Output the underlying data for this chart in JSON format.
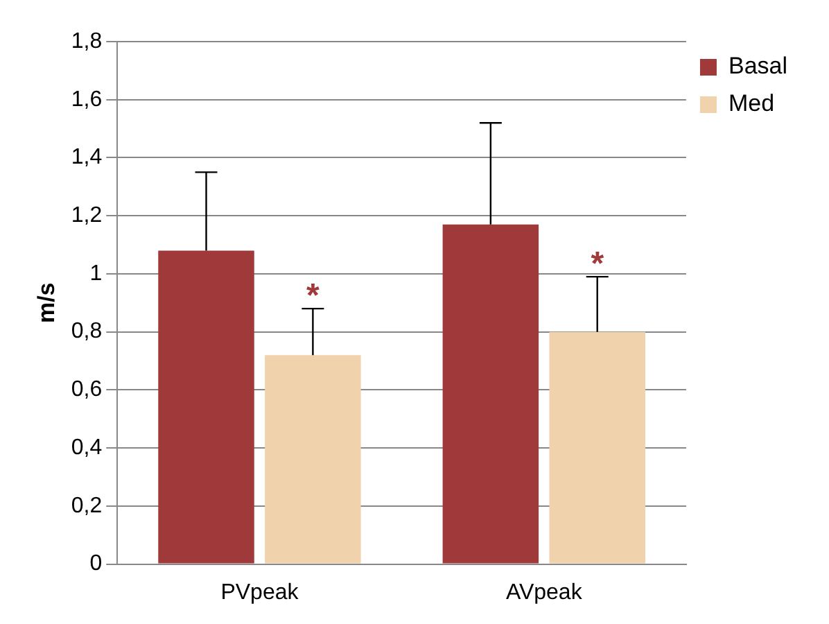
{
  "chart_data": {
    "type": "bar",
    "ylabel": "m/s",
    "categories": [
      "PVpeak",
      "AVpeak"
    ],
    "series": [
      {
        "name": "Basal",
        "color": "#a0393a",
        "values": [
          1.08,
          1.17
        ],
        "errors": [
          [
            1.08,
            1.35
          ],
          [
            1.17,
            1.52
          ]
        ]
      },
      {
        "name": "Med",
        "color": "#f0d2ac",
        "values": [
          0.72,
          0.8
        ],
        "errors": [
          [
            0.72,
            0.88
          ],
          [
            0.8,
            0.99
          ]
        ]
      }
    ],
    "ylim": [
      0,
      1.8
    ],
    "yticks": [
      0,
      {
        "value": 0.2,
        "label": "0,2"
      },
      {
        "value": 0.4,
        "label": "0,4"
      },
      {
        "value": 0.6,
        "label": "0,6"
      },
      {
        "value": 0.8,
        "label": "0,8"
      },
      1,
      {
        "value": 1.2,
        "label": "1,2"
      },
      {
        "value": 1.4,
        "label": "1,4"
      },
      {
        "value": 1.6,
        "label": "1,6"
      },
      {
        "value": 1.8,
        "label": "1,8"
      }
    ],
    "grid": "y",
    "legend": "top right",
    "annotations": [
      {
        "text": "*",
        "x": "PVpeak",
        "y": 0.88
      },
      {
        "text": "*",
        "x": "AVpeak",
        "y": 0.99
      }
    ]
  }
}
